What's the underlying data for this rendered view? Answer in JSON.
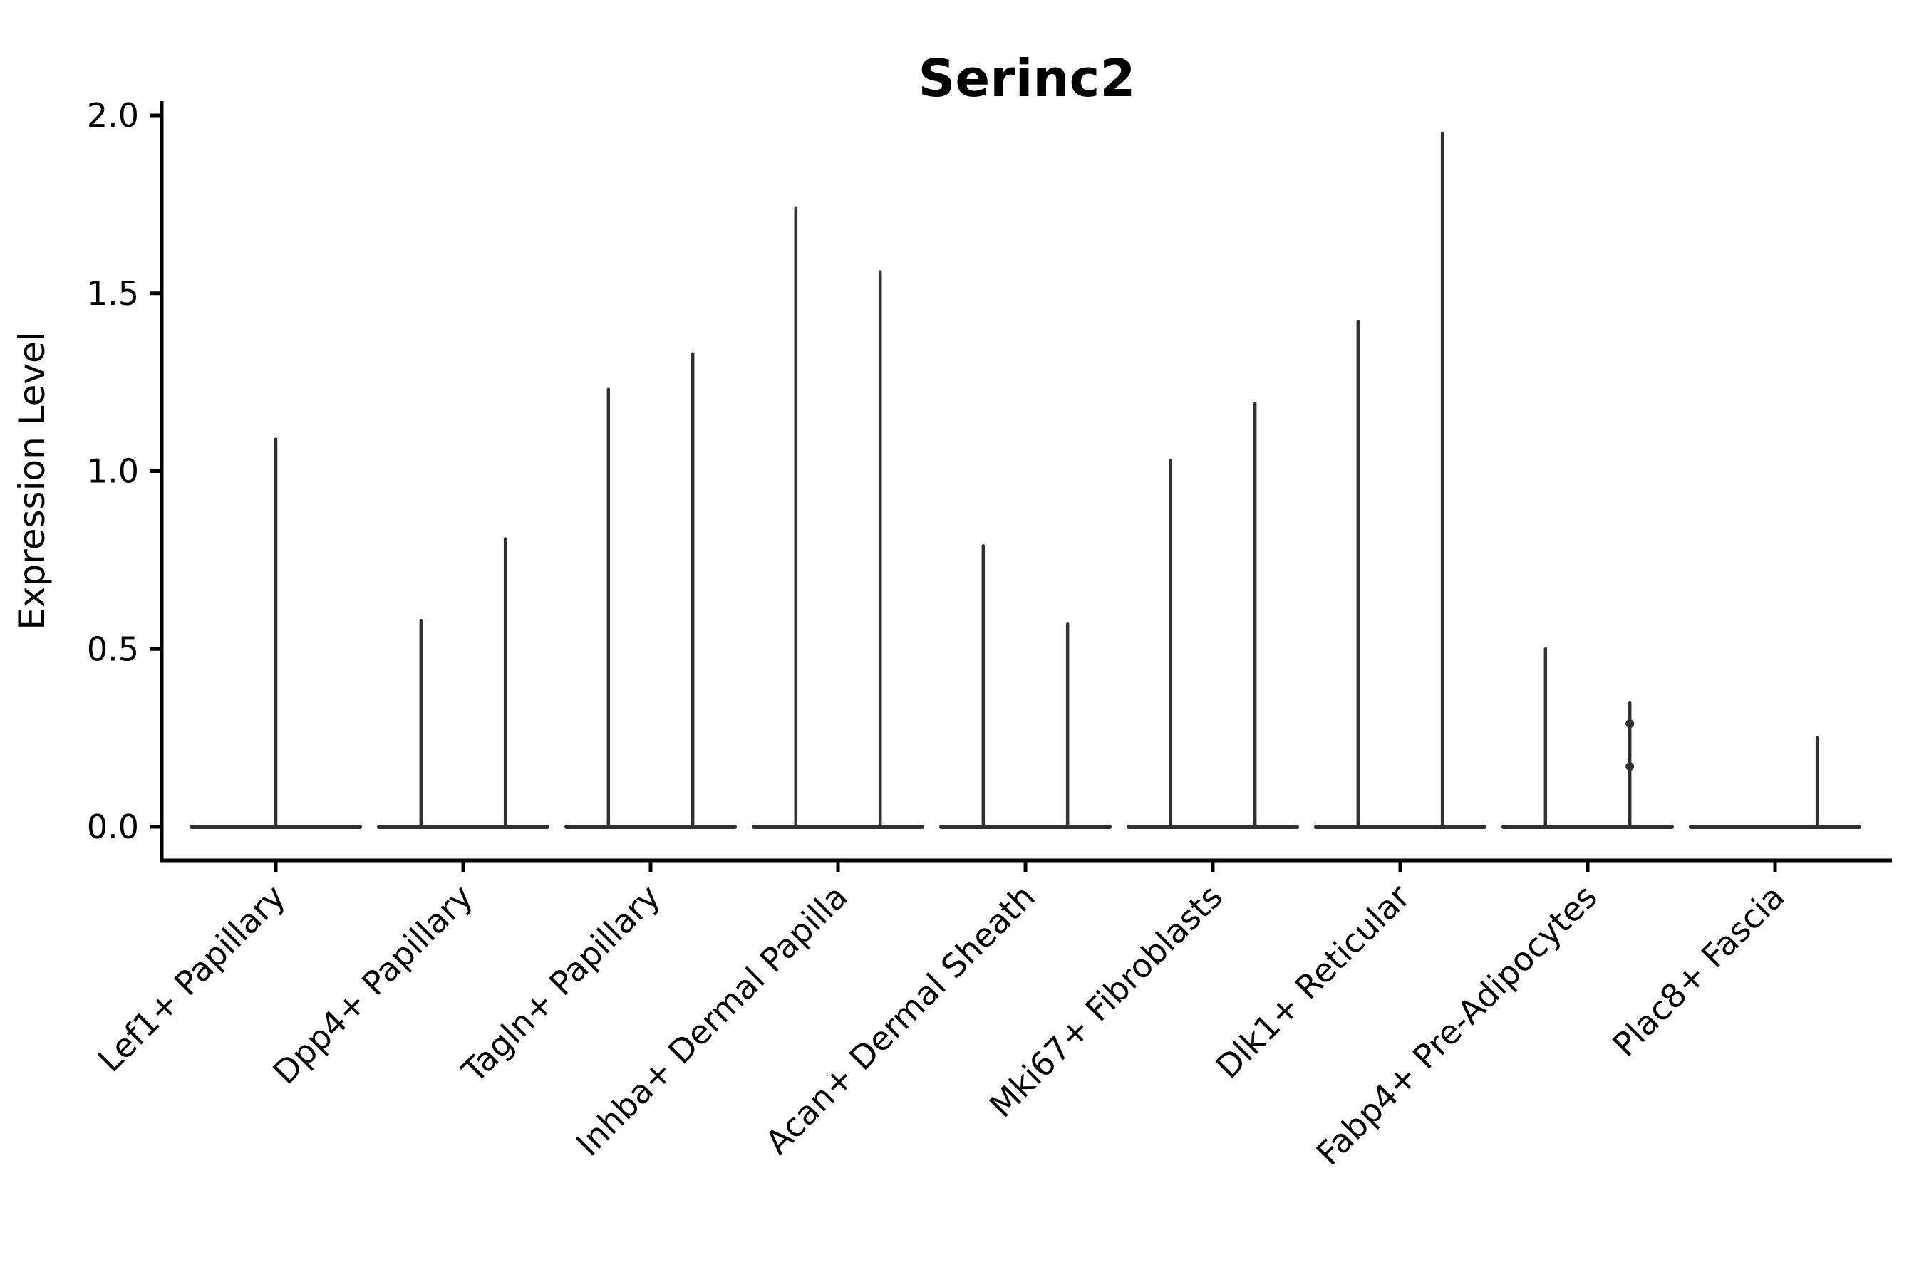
{
  "figure": {
    "title": "Serinc2",
    "y_axis_label": "Expression Level"
  },
  "style": {
    "background": "#ffffff",
    "violin_color": "#303030",
    "axis_color": "#000000",
    "text_color": "#000000"
  },
  "chart_data": {
    "type": "violin",
    "title": "Serinc2",
    "xlabel": "",
    "ylabel": "Expression Level",
    "ylim": [
      0,
      2.05
    ],
    "yticks": [
      0.0,
      0.5,
      1.0,
      1.5,
      2.0
    ],
    "ytick_labels": [
      "0.0",
      "0.5",
      "1.0",
      "1.5",
      "2.0"
    ],
    "grid": false,
    "legend_position": "none",
    "note": "Needle-thin violins: each category shows a flat base at 0 with thin density spikes up to the max expression value; most categories contain two dodged violins (spike offsets in fractions of category step).",
    "categories": [
      "Lef1+ Papillary",
      "Dpp4+ Papillary",
      "Tagln+ Papillary",
      "Inhba+ Dermal Papilla",
      "Acan+ Dermal Sheath",
      "Mki67+ Fibroblasts",
      "Dlk1+ Reticular",
      "Fabp4+ Pre-Adipocytes",
      "Plac8+ Fascia"
    ],
    "series": [
      {
        "category": "Lef1+ Papillary",
        "violins": [
          {
            "dx": 0.0,
            "max": 1.09
          }
        ]
      },
      {
        "category": "Dpp4+ Papillary",
        "violins": [
          {
            "dx": -0.225,
            "max": 0.58
          },
          {
            "dx": 0.225,
            "max": 0.81
          }
        ]
      },
      {
        "category": "Tagln+ Papillary",
        "violins": [
          {
            "dx": -0.225,
            "max": 1.23
          },
          {
            "dx": 0.225,
            "max": 1.33
          }
        ]
      },
      {
        "category": "Inhba+ Dermal Papilla",
        "violins": [
          {
            "dx": -0.225,
            "max": 1.74
          },
          {
            "dx": 0.225,
            "max": 1.56
          }
        ]
      },
      {
        "category": "Acan+ Dermal Sheath",
        "violins": [
          {
            "dx": -0.225,
            "max": 0.79
          },
          {
            "dx": 0.225,
            "max": 0.57
          }
        ]
      },
      {
        "category": "Mki67+ Fibroblasts",
        "violins": [
          {
            "dx": -0.225,
            "max": 1.03
          },
          {
            "dx": 0.225,
            "max": 1.19
          }
        ]
      },
      {
        "category": "Dlk1+ Reticular",
        "violins": [
          {
            "dx": -0.225,
            "max": 1.42
          },
          {
            "dx": 0.225,
            "max": 1.95
          }
        ]
      },
      {
        "category": "Fabp4+ Pre-Adipocytes",
        "violins": [
          {
            "dx": -0.225,
            "max": 0.5
          },
          {
            "dx": 0.225,
            "max": 0.35,
            "points": [
              0.29,
              0.17
            ]
          }
        ]
      },
      {
        "category": "Plac8+ Fascia",
        "violins": [
          {
            "dx": -0.225,
            "max": 0.0
          },
          {
            "dx": 0.225,
            "max": 0.25
          }
        ]
      }
    ]
  }
}
